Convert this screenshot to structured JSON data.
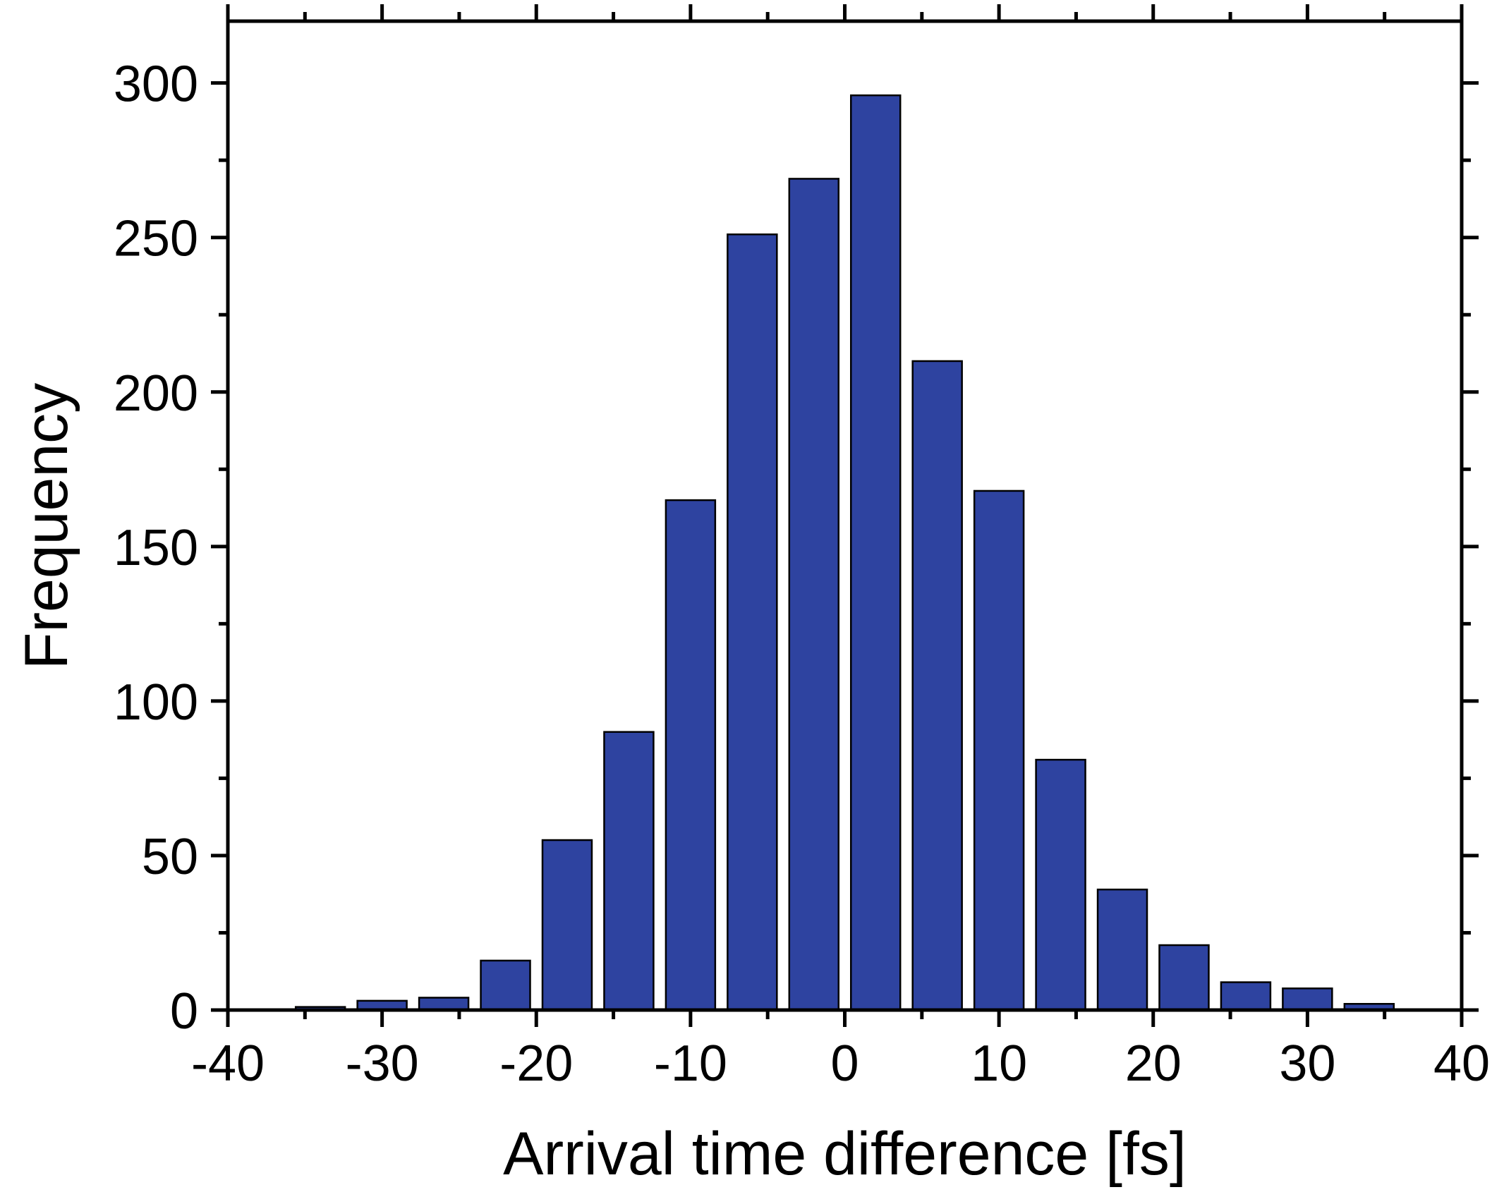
{
  "chart_data": {
    "type": "bar",
    "title": "",
    "xlabel": "Arrival time difference  [fs]",
    "ylabel": "Frequency",
    "xlim": [
      -40,
      40
    ],
    "ylim": [
      0,
      320
    ],
    "xticks": [
      "-40",
      "-30",
      "-20",
      "-10",
      "0",
      "10",
      "20",
      "30",
      "40"
    ],
    "yticks": [
      "0",
      "50",
      "100",
      "150",
      "200",
      "250",
      "300"
    ],
    "grid": false,
    "legend": "none",
    "bar_color": "#2e43a0",
    "bar_edge_color": "#000000",
    "bin_width": 4,
    "x": [
      -34,
      -30,
      -26,
      -22,
      -18,
      -14,
      -10,
      -6,
      -2,
      2,
      6,
      10,
      14,
      18,
      22,
      26,
      30,
      34
    ],
    "values": [
      1,
      3,
      4,
      16,
      55,
      90,
      165,
      251,
      269,
      296,
      210,
      168,
      81,
      39,
      21,
      9,
      7,
      2
    ]
  }
}
